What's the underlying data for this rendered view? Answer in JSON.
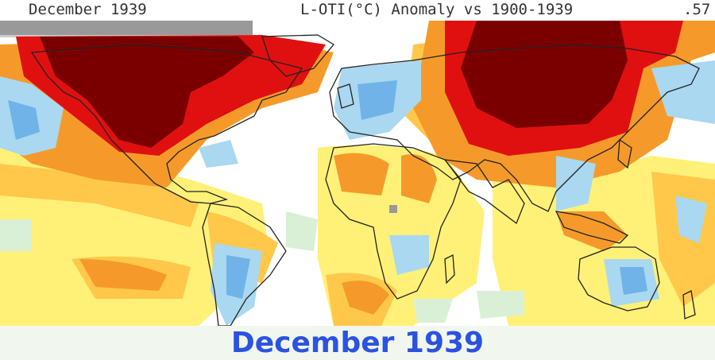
{
  "header": {
    "left_title": "December 1939",
    "center_title": "L-OTI(°C) Anomaly vs 1900-1939",
    "global_value": ".57"
  },
  "caption": "December 1939",
  "colors": {
    "dark_red": "#7a0000",
    "red": "#e01010",
    "orange_red": "#f05a10",
    "orange": "#f59a2a",
    "yellow_orange": "#ffc84a",
    "yellow": "#fff178",
    "white": "#ffffff",
    "light_green": "#d9f0d6",
    "light_blue": "#a9d8f0",
    "blue": "#6fb3e8",
    "gray_missing": "#999999",
    "caption_text": "#2b53e0"
  }
}
